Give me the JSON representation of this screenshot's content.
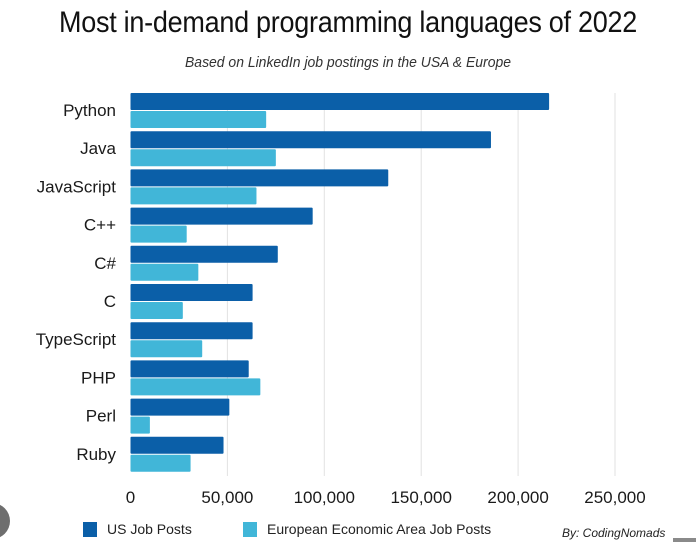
{
  "title": "Most in-demand programming languages of 2022",
  "subtitle": "Based on LinkedIn job postings in the USA & Europe",
  "byline": "By: CodingNomads",
  "colors": {
    "us": "#0b5fa8",
    "eu": "#41b6d8",
    "grid": "#e2e2e2"
  },
  "legend": [
    {
      "label": "US Job Posts",
      "series": "us"
    },
    {
      "label": "European Economic Area Job Posts",
      "series": "eu"
    }
  ],
  "chart_data": {
    "type": "bar",
    "orientation": "horizontal",
    "title": "Most in-demand programming languages of 2022",
    "subtitle": "Based on LinkedIn job postings in the USA & Europe",
    "xlabel": "",
    "ylabel": "",
    "categories": [
      "Python",
      "Java",
      "JavaScript",
      "C++",
      "C#",
      "C",
      "TypeScript",
      "PHP",
      "Perl",
      "Ruby"
    ],
    "series": [
      {
        "name": "US Job Posts",
        "key": "us",
        "values": [
          216000,
          186000,
          133000,
          94000,
          76000,
          63000,
          63000,
          61000,
          51000,
          48000
        ]
      },
      {
        "name": "European Economic Area Job Posts",
        "key": "eu",
        "values": [
          70000,
          75000,
          65000,
          29000,
          35000,
          27000,
          37000,
          67000,
          10000,
          31000
        ]
      }
    ],
    "xlim": [
      0,
      250000
    ],
    "xticks": [
      0,
      50000,
      100000,
      150000,
      200000,
      250000
    ],
    "xtick_labels": [
      "0",
      "50,000",
      "100,000",
      "150,000",
      "200,000",
      "250,000"
    ],
    "grid": "vertical",
    "legend_position": "bottom"
  }
}
